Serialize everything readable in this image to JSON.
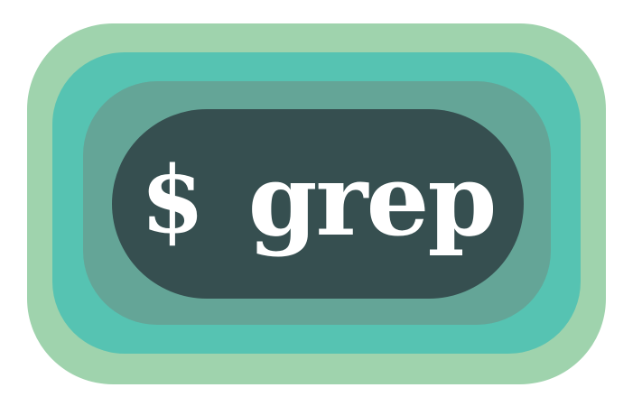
{
  "logo": {
    "prompt_symbol": "$",
    "command": "grep"
  },
  "colors": {
    "background": "#ffffff",
    "outer_ring": "#9fd3ad",
    "mid_ring": "#56c3b2",
    "inner_ring": "#64a597",
    "core": "#364f50",
    "text": "#ffffff"
  }
}
